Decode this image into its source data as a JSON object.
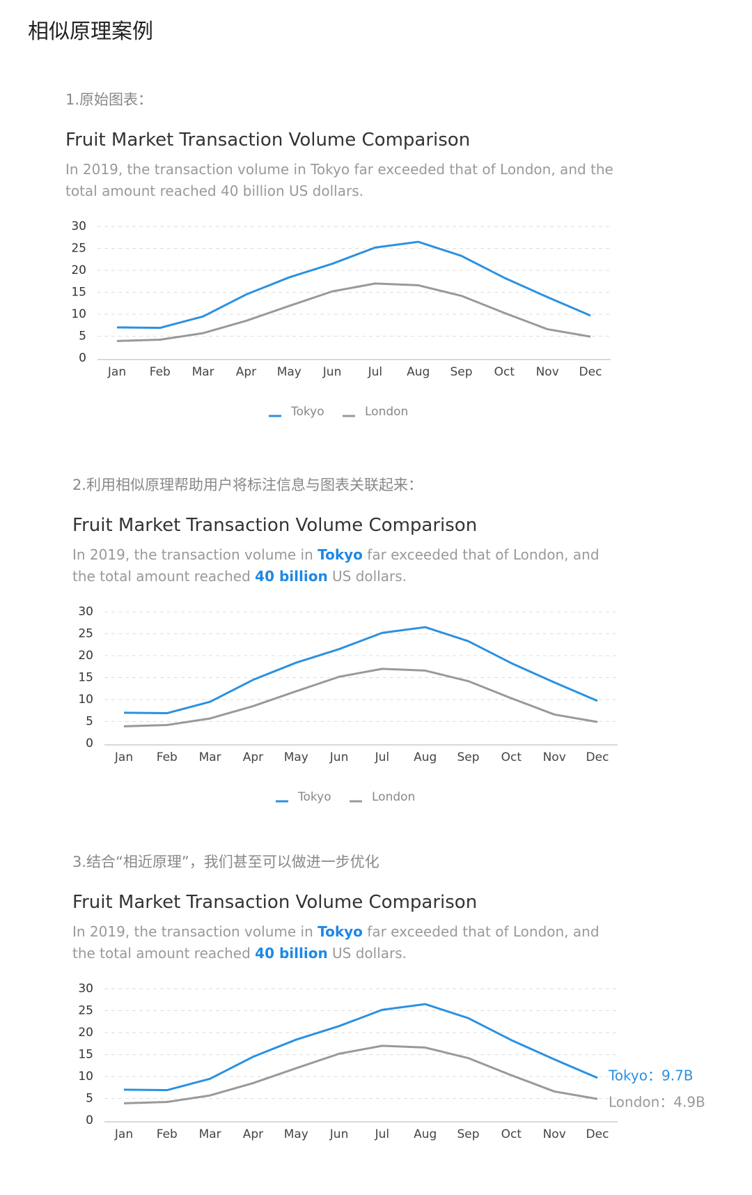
{
  "title": "相似原理案例",
  "headings": [
    "1.原始图表：",
    "2.利用相似原理帮助用户将标注信息与图表关联起来：",
    "3.结合“相近原理”，我们甚至可以做进一步优化"
  ],
  "chart_data": [
    {
      "type": "line",
      "title": "Fruit Market Transaction Volume Comparison",
      "subtitle": "In 2019, the transaction volume in Tokyo far exceeded that of London, and the total amount reached 40 billion US dollars.",
      "categories": [
        "Jan",
        "Feb",
        "Mar",
        "Apr",
        "May",
        "Jun",
        "Jul",
        "Aug",
        "Sep",
        "Oct",
        "Nov",
        "Dec"
      ],
      "series": [
        {
          "name": "Tokyo",
          "color": "#2b91e0",
          "values": [
            7,
            6.9,
            9.5,
            14.5,
            18.4,
            21.5,
            25.2,
            26.5,
            23.3,
            18.3,
            13.9,
            9.7
          ]
        },
        {
          "name": "London",
          "color": "#999999",
          "values": [
            3.9,
            4.2,
            5.7,
            8.5,
            11.9,
            15.2,
            17,
            16.6,
            14.2,
            10.3,
            6.6,
            4.9
          ]
        }
      ],
      "ylim": [
        0,
        30
      ],
      "yticks": [
        0,
        5,
        10,
        15,
        20,
        25,
        30
      ],
      "grid": true,
      "legend": "bottom"
    },
    {
      "type": "line",
      "title": "Fruit Market Transaction Volume Comparison",
      "subtitle": [
        {
          "text": "In 2019, the transaction volume in "
        },
        {
          "text": "Tokyo",
          "emphasis": true
        },
        {
          "text": " far exceeded that of London, and the total amount reached "
        },
        {
          "text": "40 billion",
          "emphasis": true
        },
        {
          "text": " US dollars."
        }
      ],
      "categories": [
        "Jan",
        "Feb",
        "Mar",
        "Apr",
        "May",
        "Jun",
        "Jul",
        "Aug",
        "Sep",
        "Oct",
        "Nov",
        "Dec"
      ],
      "series": [
        {
          "name": "Tokyo",
          "color": "#2b91e0",
          "values": [
            7,
            6.9,
            9.5,
            14.5,
            18.4,
            21.5,
            25.2,
            26.5,
            23.3,
            18.3,
            13.9,
            9.7
          ]
        },
        {
          "name": "London",
          "color": "#999999",
          "values": [
            3.9,
            4.2,
            5.7,
            8.5,
            11.9,
            15.2,
            17,
            16.6,
            14.2,
            10.3,
            6.6,
            4.9
          ]
        }
      ],
      "ylim": [
        0,
        30
      ],
      "yticks": [
        0,
        5,
        10,
        15,
        20,
        25,
        30
      ],
      "grid": true,
      "legend": "bottom"
    },
    {
      "type": "line",
      "title": "Fruit Market Transaction Volume Comparison",
      "subtitle": [
        {
          "text": "In 2019, the transaction volume in "
        },
        {
          "text": "Tokyo",
          "emphasis": true
        },
        {
          "text": " far exceeded that of London, and the total amount reached "
        },
        {
          "text": "40 billion",
          "emphasis": true
        },
        {
          "text": " US dollars."
        }
      ],
      "categories": [
        "Jan",
        "Feb",
        "Mar",
        "Apr",
        "May",
        "Jun",
        "Jul",
        "Aug",
        "Sep",
        "Oct",
        "Nov",
        "Dec"
      ],
      "series": [
        {
          "name": "Tokyo",
          "color": "#2b91e0",
          "values": [
            7,
            6.9,
            9.5,
            14.5,
            18.4,
            21.5,
            25.2,
            26.5,
            23.3,
            18.3,
            13.9,
            9.7
          ],
          "end_label": "Tokyo：9.7B"
        },
        {
          "name": "London",
          "color": "#999999",
          "values": [
            3.9,
            4.2,
            5.7,
            8.5,
            11.9,
            15.2,
            17,
            16.6,
            14.2,
            10.3,
            6.6,
            4.9
          ],
          "end_label": "London：4.9B"
        }
      ],
      "ylim": [
        0,
        30
      ],
      "yticks": [
        0,
        5,
        10,
        15,
        20,
        25,
        30
      ],
      "grid": true
    }
  ]
}
